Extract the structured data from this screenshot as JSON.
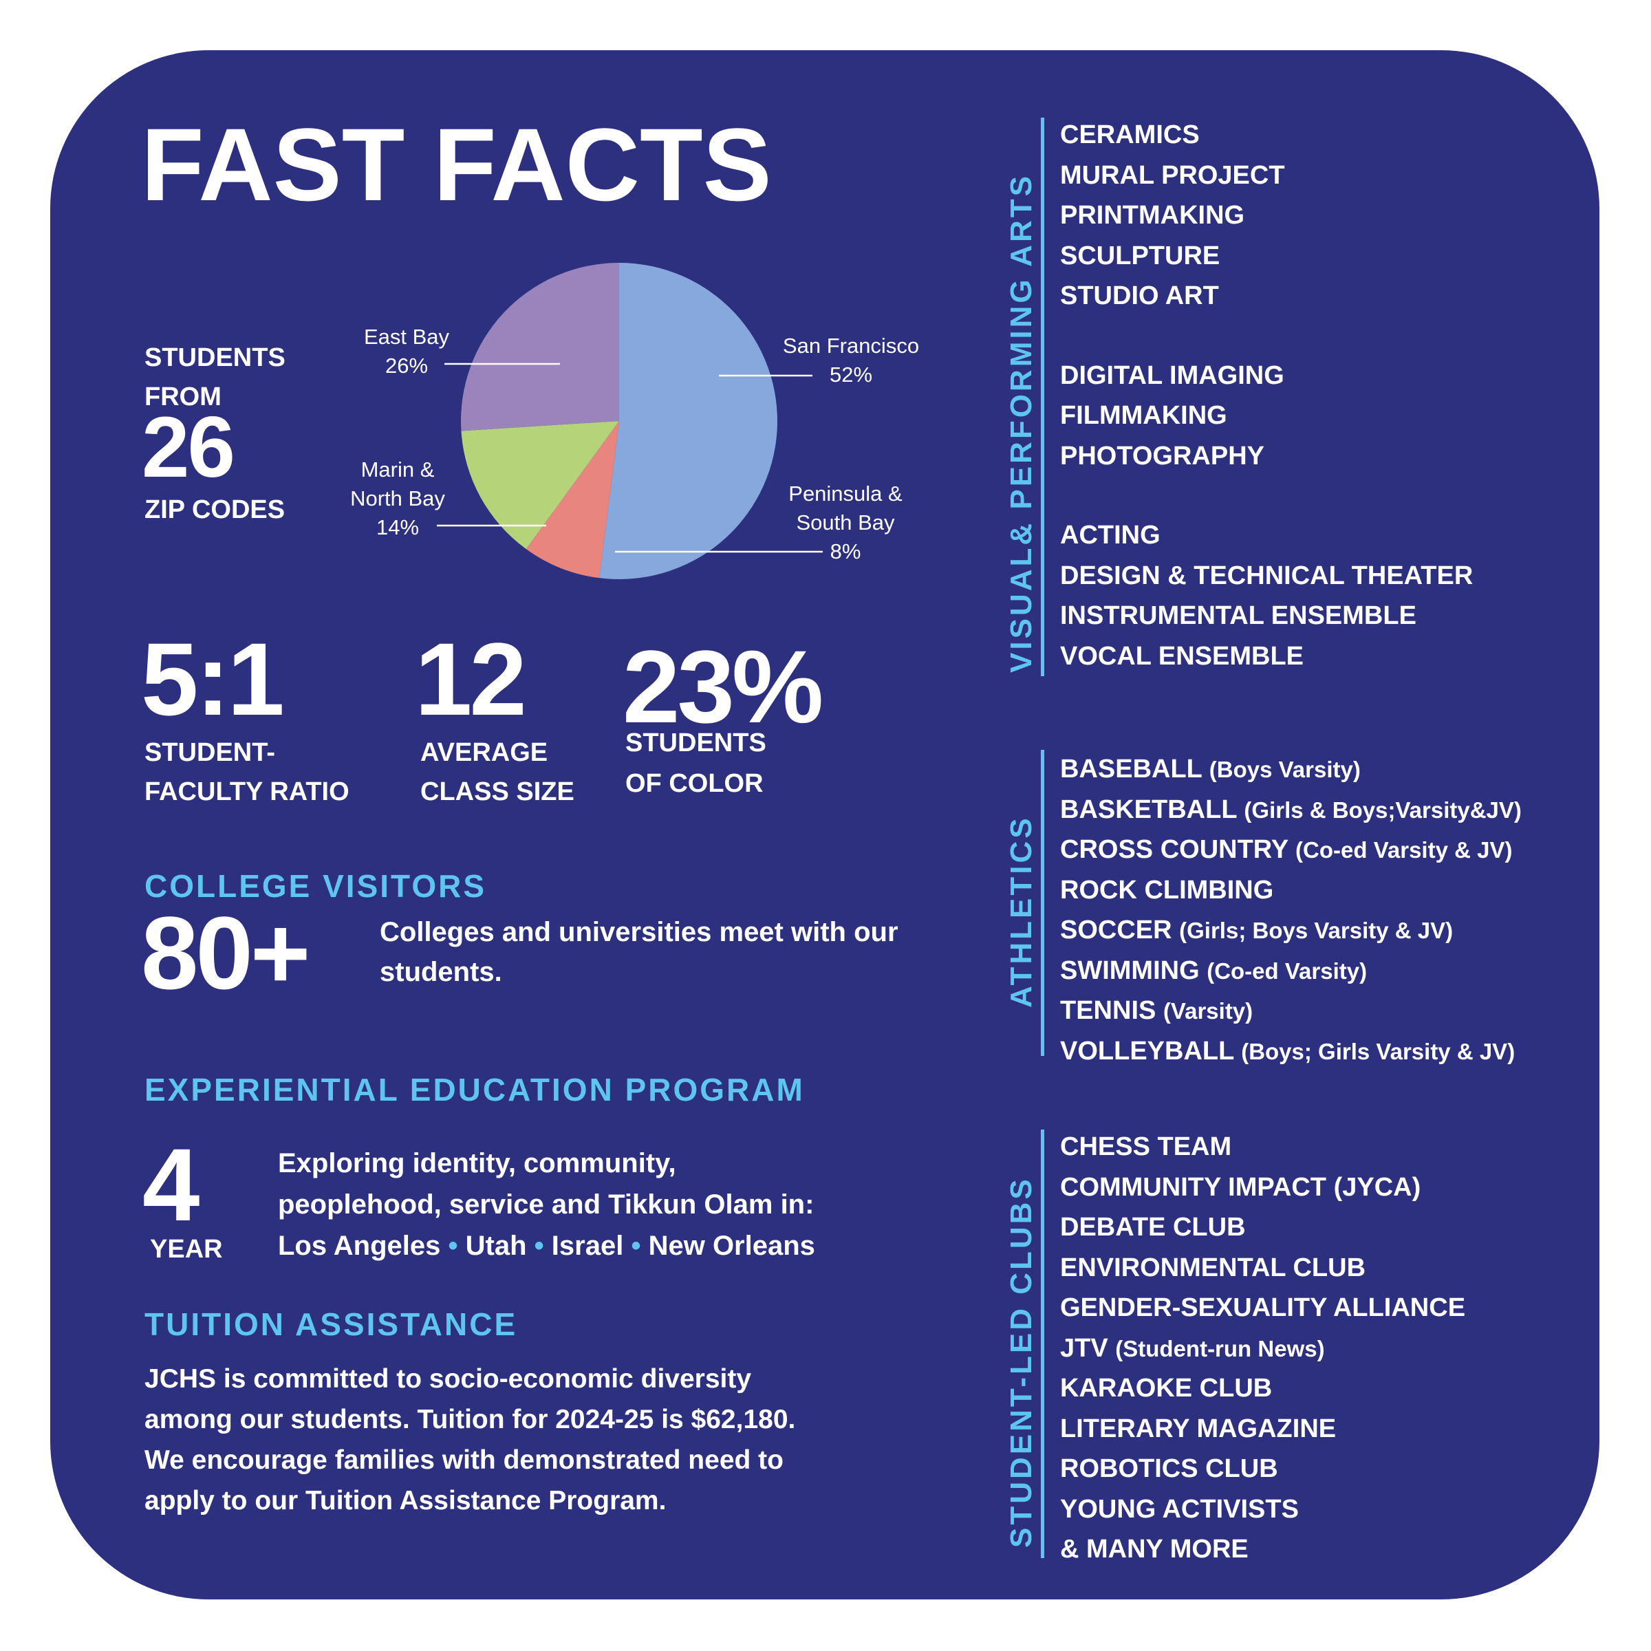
{
  "title": "FAST FACTS",
  "zip": {
    "lead_lines": [
      "STUDENTS",
      "FROM"
    ],
    "number": "26",
    "label": "ZIP CODES"
  },
  "chart_data": {
    "type": "pie",
    "categories": [
      "San Francisco",
      "Peninsula & South Bay",
      "Marin & North Bay",
      "East Bay"
    ],
    "values": [
      52,
      8,
      14,
      26
    ],
    "value_labels": [
      "52%",
      "8%",
      "14%",
      "26%"
    ],
    "colors": [
      "#86a8dc",
      "#e8857f",
      "#b5d47a",
      "#9a84bb"
    ]
  },
  "stats": [
    {
      "value": "5:1",
      "label_lines": [
        "STUDENT-",
        "FACULTY RATIO"
      ]
    },
    {
      "value": "12",
      "label_lines": [
        "AVERAGE",
        "CLASS SIZE"
      ]
    },
    {
      "value": "23%",
      "label_lines": [
        "STUDENTS",
        "OF COLOR"
      ]
    }
  ],
  "college_visitors": {
    "heading": "COLLEGE VISITORS",
    "number": "80+",
    "text": "Colleges and universities meet with our students."
  },
  "experiential": {
    "heading": "EXPERIENTIAL EDUCATION PROGRAM",
    "number": "4",
    "unit": "YEAR",
    "lines": [
      "Exploring identity, community,",
      "peoplehood,  service and Tikkun Olam in:"
    ],
    "locations": [
      "Los Angeles",
      "Utah",
      "Israel",
      "New Orleans"
    ],
    "separator": "•"
  },
  "tuition": {
    "heading": "TUITION ASSISTANCE",
    "lines": [
      "JCHS is committed to socio-economic diversity",
      "among our students. Tuition for 2024-25 is $62,180.",
      "We encourage families with demonstrated need to",
      "apply to our Tuition Assistance Program."
    ]
  },
  "arts": {
    "heading": "VISUAL& PERFORMING ARTS",
    "groups": [
      [
        "CERAMICS",
        "MURAL PROJECT",
        "PRINTMAKING",
        "SCULPTURE",
        "STUDIO ART"
      ],
      [
        "DIGITAL IMAGING",
        "FILMMAKING",
        "PHOTOGRAPHY"
      ],
      [
        "ACTING",
        "DESIGN & TECHNICAL THEATER",
        "INSTRUMENTAL ENSEMBLE",
        "VOCAL ENSEMBLE"
      ]
    ]
  },
  "athletics": {
    "heading": "ATHLETICS",
    "items": [
      {
        "name": "BASEBALL",
        "detail": "(Boys Varsity)"
      },
      {
        "name": "BASKETBALL",
        "detail": "(Girls & Boys;Varsity&JV)"
      },
      {
        "name": "CROSS COUNTRY",
        "detail": "(Co-ed Varsity & JV)"
      },
      {
        "name": "ROCK CLIMBING"
      },
      {
        "name": "SOCCER",
        "detail": "(Girls; Boys Varsity & JV)"
      },
      {
        "name": "SWIMMING",
        "detail": "(Co-ed Varsity)"
      },
      {
        "name": "TENNIS",
        "detail": "(Varsity)"
      },
      {
        "name": "VOLLEYBALL",
        "detail": "(Boys; Girls Varsity & JV)"
      }
    ]
  },
  "clubs": {
    "heading": "STUDENT-LED CLUBS",
    "items": [
      {
        "name": "CHESS TEAM"
      },
      {
        "name": "COMMUNITY IMPACT (JYCA)"
      },
      {
        "name": "DEBATE CLUB"
      },
      {
        "name": "ENVIRONMENTAL CLUB"
      },
      {
        "name": "GENDER-SEXUALITY ALLIANCE"
      },
      {
        "name": "JTV",
        "detail": "(Student-run News)"
      },
      {
        "name": "KARAOKE CLUB"
      },
      {
        "name": "LITERARY MAGAZINE"
      },
      {
        "name": "ROBOTICS CLUB"
      },
      {
        "name": "YOUNG ACTIVISTS"
      },
      {
        "name": "& MANY MORE"
      }
    ]
  }
}
